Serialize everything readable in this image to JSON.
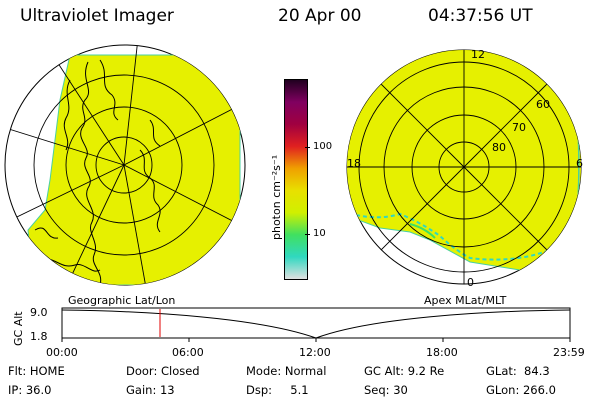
{
  "header": {
    "instrument": "Ultraviolet Imager",
    "date": "20 Apr 00",
    "time": "04:37:56 UT"
  },
  "left_panel": {
    "caption": "Geographic Lat/Lon"
  },
  "right_panel": {
    "caption": "Apex MLat/MLT",
    "mlt_labels": {
      "top": "12",
      "bottom": "0",
      "left": "18",
      "right": "6"
    },
    "lat_labels": [
      "60",
      "70",
      "80"
    ]
  },
  "colorbar": {
    "unit": "photon cm⁻²s⁻¹",
    "ticks": [
      "100",
      "10"
    ],
    "scale": "log",
    "colors": [
      "#e0e0e0",
      "#30d8c0",
      "#40e060",
      "#d0f000",
      "#e8e000",
      "#f0a000",
      "#e02020",
      "#a00040",
      "#800060",
      "#200020"
    ]
  },
  "timeline": {
    "ylabel": "GC Alt",
    "y_ticks": [
      "9.0",
      "1.8"
    ],
    "x_ticks": [
      "00:00",
      "06:00",
      "12:00",
      "18:00",
      "23:59"
    ],
    "marker_time_hours": 4.63
  },
  "info": {
    "flt": "Flt: HOME",
    "ip": "IP: 36.0",
    "door": "Door: Closed",
    "gain": "Gain: 13",
    "mode": "Mode: Normal",
    "dsp": "Dsp:     5.1",
    "gcalt": "GC Alt: 9.2 Re",
    "seq": "Seq: 30",
    "glat": "GLat:  84.3",
    "glon": "GLon: 266.0"
  }
}
